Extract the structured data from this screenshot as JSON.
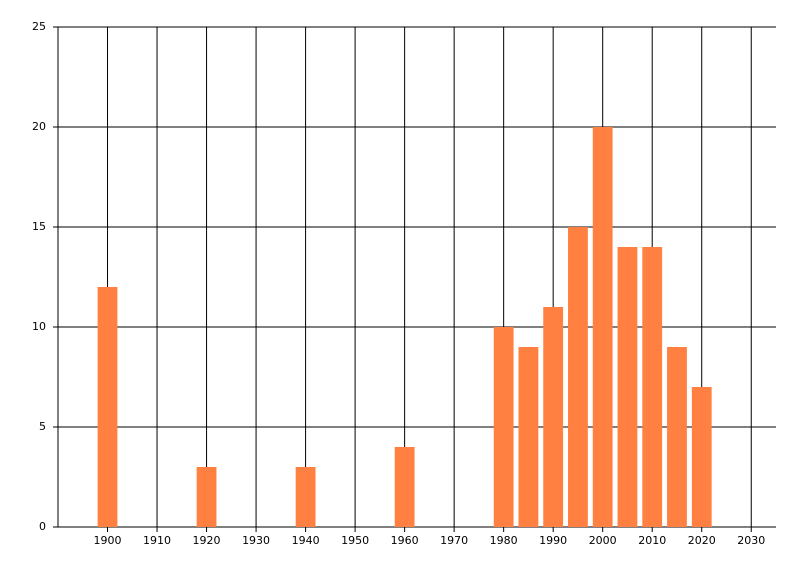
{
  "chart_data": {
    "type": "bar",
    "x": [
      1900,
      1920,
      1940,
      1960,
      1980,
      1985,
      1990,
      1995,
      2000,
      2005,
      2010,
      2015,
      2020
    ],
    "values": [
      12,
      3,
      3,
      4,
      10,
      9,
      11,
      15,
      20,
      14,
      14,
      9,
      7
    ],
    "color": "#ff8040",
    "xlim": [
      1890,
      2035
    ],
    "xticks": [
      1900,
      1910,
      1920,
      1930,
      1940,
      1950,
      1960,
      1970,
      1980,
      1990,
      2000,
      2010,
      2020,
      2030
    ],
    "ylim": [
      0,
      25
    ],
    "yticks": [
      0,
      5,
      10,
      15,
      20,
      25
    ],
    "grid": true
  }
}
